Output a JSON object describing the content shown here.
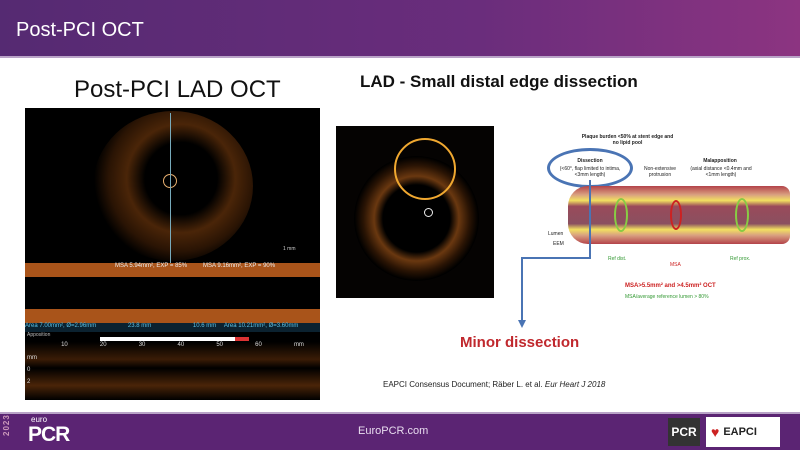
{
  "header": {
    "title": "Post-PCI OCT"
  },
  "left": {
    "title": "Post-PCI LAD OCT",
    "oct": {
      "scale": "1 mm",
      "msa_label_1": "MSA 5.94mm², EXP = 85%",
      "msa_label_2": "MSA 9.16mm², EXP = 90%",
      "area_left": "Area 7.00mm², Ø=2.96mm",
      "length_1": "23.8 mm",
      "length_2": "10.6 mm",
      "area_right": "Area 10.21mm², Ø=3.60mm",
      "apposition_label": "Apposition",
      "ticks": [
        "10",
        "20",
        "30",
        "40",
        "50",
        "60",
        "mm"
      ],
      "depth_ticks": [
        "mm",
        "0",
        "2"
      ]
    }
  },
  "right": {
    "title": "LAD - Small distal edge dissection",
    "diagram": {
      "plaque": "Plaque burden <50% at stent edge and no lipid pool",
      "dissection_title": "Dissection",
      "dissection_text": "(<60°, flap limited to intima, <3mm length)",
      "protrusion": "Non-extensive protrusion",
      "malapposition_title": "Malapposition",
      "malapposition_text": "(axial distance <0.4mm and <1mm length)",
      "lumen": "Lumen",
      "eem": "EEM",
      "ref_dist": "Ref dist.",
      "msa": "MSA",
      "ref_prox": "Ref prox.",
      "criteria_1": "MSA>5.5mm² and >4.5mm² OCT",
      "criteria_2": "MSA/average reference lumen > 80%"
    },
    "annotation": "Minor dissection",
    "citation_prefix": "EAPCI Consensus Document; Räber L. et al. ",
    "citation_journal": "Eur Heart J 2018"
  },
  "footer": {
    "year": "2023",
    "brand_small": "euro",
    "brand": "PCR",
    "url": "EuroPCR.com",
    "logo_pcr": "PCR",
    "logo_eapci": "EAPCI"
  },
  "colors": {
    "header": "#5a2a76",
    "footer": "#5b2473",
    "annotation": "#c0282d",
    "callout": "#4a74b4"
  }
}
